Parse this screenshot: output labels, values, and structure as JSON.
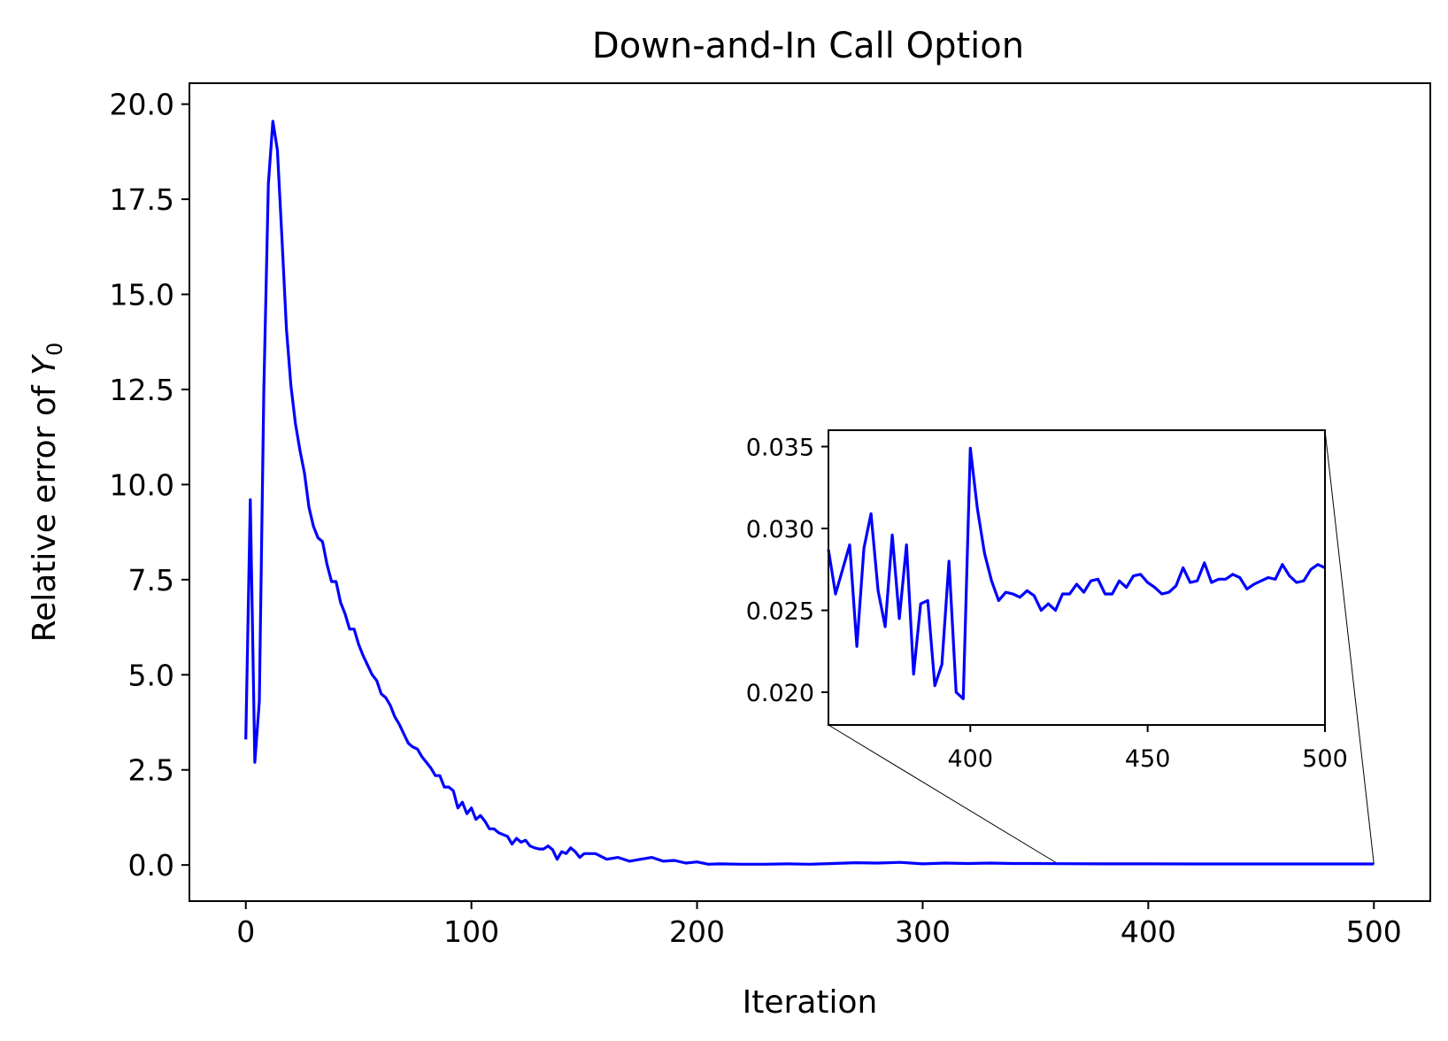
{
  "chart_data": {
    "type": "line",
    "title": "Down-and-In Call Option",
    "xlabel": "Iteration",
    "ylabel_main": "Relative error of ",
    "ylabel_symbol": "Y",
    "ylabel_subscript": "0",
    "xlim": [
      -25,
      525
    ],
    "ylim": [
      -0.95,
      20.55
    ],
    "xticks": [
      0,
      100,
      200,
      300,
      400,
      500
    ],
    "xtick_labels": [
      "0",
      "100",
      "200",
      "300",
      "400",
      "500"
    ],
    "yticks": [
      0,
      2.5,
      5,
      7.5,
      10,
      12.5,
      15,
      17.5,
      20
    ],
    "ytick_labels": [
      "0.0",
      "2.5",
      "5.0",
      "7.5",
      "10.0",
      "12.5",
      "15.0",
      "17.5",
      "20.0"
    ],
    "grid": false,
    "legend": "none",
    "line_color": "#0000ff",
    "series": [
      {
        "x": [
          0,
          2,
          4,
          6,
          8,
          10,
          12,
          14,
          16,
          18,
          20,
          22,
          24,
          26,
          28,
          30,
          32,
          34,
          36,
          38,
          40,
          42,
          44,
          46,
          48,
          50,
          52,
          54,
          56,
          58,
          60,
          62,
          64,
          66,
          68,
          70,
          72,
          74,
          76,
          78,
          80,
          82,
          84,
          86,
          88,
          90,
          92,
          94,
          96,
          98,
          100,
          102,
          104,
          106,
          108,
          110,
          112,
          114,
          116,
          118,
          120,
          122,
          124,
          126,
          128,
          130,
          132,
          134,
          136,
          138,
          140,
          142,
          144,
          146,
          148,
          150,
          155,
          160,
          165,
          170,
          175,
          180,
          185,
          190,
          195,
          200,
          205,
          210,
          220,
          230,
          240,
          250,
          260,
          270,
          280,
          290,
          300,
          310,
          320,
          330,
          340,
          350,
          360,
          380,
          400,
          420,
          440,
          460,
          480,
          500
        ],
        "values": [
          3.3,
          9.6,
          2.7,
          4.3,
          12.5,
          17.9,
          19.55,
          18.8,
          16.5,
          14.1,
          12.6,
          11.6,
          10.9,
          10.3,
          9.4,
          8.9,
          8.6,
          8.5,
          7.9,
          7.45,
          7.45,
          6.9,
          6.6,
          6.2,
          6.2,
          5.8,
          5.5,
          5.25,
          5.0,
          4.85,
          4.5,
          4.4,
          4.2,
          3.9,
          3.7,
          3.45,
          3.2,
          3.1,
          3.05,
          2.85,
          2.7,
          2.55,
          2.35,
          2.35,
          2.05,
          2.05,
          1.95,
          1.5,
          1.65,
          1.35,
          1.5,
          1.2,
          1.3,
          1.15,
          0.95,
          0.95,
          0.85,
          0.8,
          0.75,
          0.55,
          0.7,
          0.6,
          0.65,
          0.5,
          0.45,
          0.42,
          0.42,
          0.5,
          0.4,
          0.15,
          0.35,
          0.3,
          0.45,
          0.35,
          0.2,
          0.3,
          0.3,
          0.15,
          0.2,
          0.1,
          0.15,
          0.2,
          0.1,
          0.12,
          0.05,
          0.08,
          0.02,
          0.03,
          0.02,
          0.02,
          0.03,
          0.02,
          0.04,
          0.06,
          0.05,
          0.07,
          0.03,
          0.05,
          0.04,
          0.05,
          0.04,
          0.04,
          0.035,
          0.03,
          0.03,
          0.028,
          0.027,
          0.027,
          0.027,
          0.027
        ]
      }
    ],
    "inset": {
      "xlim": [
        360,
        500
      ],
      "ylim": [
        0.018,
        0.036
      ],
      "xticks": [
        400,
        450,
        500
      ],
      "xtick_labels": [
        "400",
        "450",
        "500"
      ],
      "yticks": [
        0.02,
        0.025,
        0.03,
        0.035
      ],
      "ytick_labels": [
        "0.020",
        "0.025",
        "0.030",
        "0.035"
      ],
      "x": [
        360,
        362,
        364,
        366,
        368,
        370,
        372,
        374,
        376,
        378,
        380,
        382,
        384,
        386,
        388,
        390,
        392,
        394,
        396,
        398,
        400,
        402,
        404,
        406,
        408,
        410,
        412,
        414,
        416,
        418,
        420,
        422,
        424,
        426,
        428,
        430,
        432,
        434,
        436,
        438,
        440,
        442,
        444,
        446,
        448,
        450,
        452,
        454,
        456,
        458,
        460,
        462,
        464,
        466,
        468,
        470,
        472,
        474,
        476,
        478,
        480,
        482,
        484,
        486,
        488,
        490,
        492,
        494,
        496,
        498,
        500
      ],
      "values": [
        0.0287,
        0.026,
        0.0275,
        0.029,
        0.0228,
        0.0288,
        0.0309,
        0.0262,
        0.024,
        0.0296,
        0.0245,
        0.029,
        0.0211,
        0.0254,
        0.0256,
        0.0204,
        0.0217,
        0.028,
        0.02,
        0.0196,
        0.0349,
        0.0312,
        0.0285,
        0.0268,
        0.0256,
        0.0261,
        0.026,
        0.0258,
        0.0262,
        0.0259,
        0.025,
        0.0254,
        0.025,
        0.026,
        0.026,
        0.0266,
        0.0261,
        0.0268,
        0.0269,
        0.026,
        0.026,
        0.0268,
        0.0264,
        0.0271,
        0.0272,
        0.0267,
        0.0264,
        0.026,
        0.0261,
        0.0265,
        0.0276,
        0.0267,
        0.0268,
        0.0279,
        0.0267,
        0.0269,
        0.0269,
        0.0272,
        0.027,
        0.0263,
        0.0266,
        0.0268,
        0.027,
        0.0269,
        0.0278,
        0.0271,
        0.0267,
        0.0268,
        0.0275,
        0.0278,
        0.0276
      ]
    }
  }
}
